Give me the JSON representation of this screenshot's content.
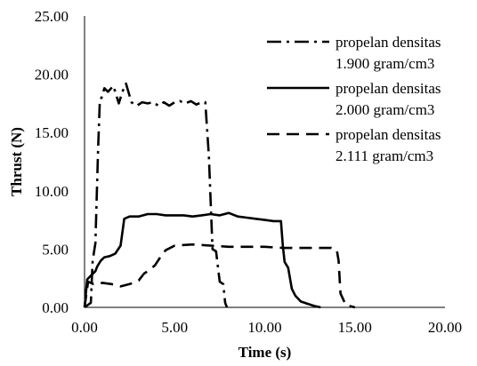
{
  "chart_data": {
    "type": "line",
    "title": "",
    "xlabel": "Time (s)",
    "ylabel": "Thrust (N)",
    "xlim": [
      0,
      20
    ],
    "ylim": [
      0,
      25
    ],
    "xticks": [
      0,
      5,
      10,
      15,
      20
    ],
    "yticks": [
      0,
      5,
      10,
      15,
      20,
      25
    ],
    "xtick_labels": [
      "0.00",
      "5.00",
      "10.00",
      "15.00",
      "20.00"
    ],
    "ytick_labels": [
      "0.00",
      "5.00",
      "10.00",
      "15.00",
      "20.00",
      "25.00"
    ],
    "grid": false,
    "legend_position": "top-right",
    "series": [
      {
        "name": "propelan densitas 1.900 gram/cm3",
        "legend_lines": [
          "propelan densitas",
          "1.900 gram/cm3"
        ],
        "style": "dash-dot",
        "color": "#000000",
        "x": [
          0.0,
          0.35,
          0.45,
          0.6,
          0.75,
          0.85,
          0.95,
          1.1,
          1.3,
          1.6,
          1.9,
          2.1,
          2.3,
          2.6,
          2.9,
          3.2,
          3.5,
          3.8,
          4.1,
          4.4,
          4.7,
          5.0,
          5.3,
          5.6,
          5.9,
          6.2,
          6.5,
          6.7,
          6.9,
          7.1,
          7.3,
          7.5,
          7.7,
          7.8,
          7.9
        ],
        "y": [
          0.0,
          0.4,
          4.0,
          5.5,
          13.5,
          17.8,
          18.0,
          18.8,
          18.5,
          19.0,
          17.5,
          18.5,
          19.2,
          17.6,
          17.3,
          17.6,
          17.5,
          17.6,
          17.3,
          17.6,
          17.3,
          17.6,
          17.7,
          17.5,
          17.7,
          17.4,
          17.6,
          17.6,
          13.0,
          5.0,
          4.8,
          2.2,
          2.0,
          0.4,
          0.0
        ]
      },
      {
        "name": "propelan densitas 2.000 gram/cm3",
        "legend_lines": [
          "propelan densitas",
          "2.000 gram/cm3"
        ],
        "style": "solid",
        "color": "#000000",
        "x": [
          0.0,
          0.15,
          0.4,
          0.6,
          0.7,
          0.9,
          1.1,
          1.4,
          1.7,
          2.0,
          2.2,
          2.5,
          3.0,
          3.5,
          4.0,
          4.5,
          5.0,
          5.5,
          6.0,
          6.5,
          7.0,
          7.5,
          8.0,
          8.5,
          9.0,
          9.5,
          10.0,
          10.5,
          10.9,
          11.0,
          11.1,
          11.3,
          11.5,
          11.7,
          12.0,
          12.4,
          12.8,
          13.1
        ],
        "y": [
          0.0,
          2.4,
          2.8,
          3.1,
          3.5,
          4.0,
          4.3,
          4.4,
          4.6,
          5.3,
          7.6,
          7.8,
          7.8,
          8.0,
          8.0,
          7.9,
          7.9,
          7.9,
          7.8,
          7.9,
          8.0,
          7.9,
          8.1,
          7.8,
          7.7,
          7.6,
          7.5,
          7.4,
          7.4,
          5.3,
          3.9,
          3.4,
          1.6,
          1.0,
          0.5,
          0.3,
          0.1,
          0.0
        ]
      },
      {
        "name": "propelan densitas 2.111 gram/cm3",
        "legend_lines": [
          "propelan densitas",
          "2.111 gram/cm3"
        ],
        "style": "dashed",
        "color": "#000000",
        "x": [
          0.0,
          0.2,
          0.5,
          1.0,
          1.5,
          2.0,
          2.5,
          3.0,
          3.3,
          3.5,
          3.9,
          4.2,
          4.5,
          5.0,
          6.0,
          7.0,
          8.0,
          9.0,
          10.0,
          11.0,
          12.0,
          13.0,
          13.7,
          14.0,
          14.1,
          14.2,
          14.5,
          15.0
        ],
        "y": [
          0.0,
          2.2,
          2.0,
          2.1,
          2.0,
          1.8,
          2.0,
          2.3,
          2.9,
          3.1,
          3.6,
          4.3,
          4.9,
          5.3,
          5.4,
          5.3,
          5.2,
          5.2,
          5.2,
          5.1,
          5.1,
          5.1,
          5.1,
          4.9,
          4.0,
          1.2,
          0.2,
          0.0
        ]
      }
    ]
  }
}
